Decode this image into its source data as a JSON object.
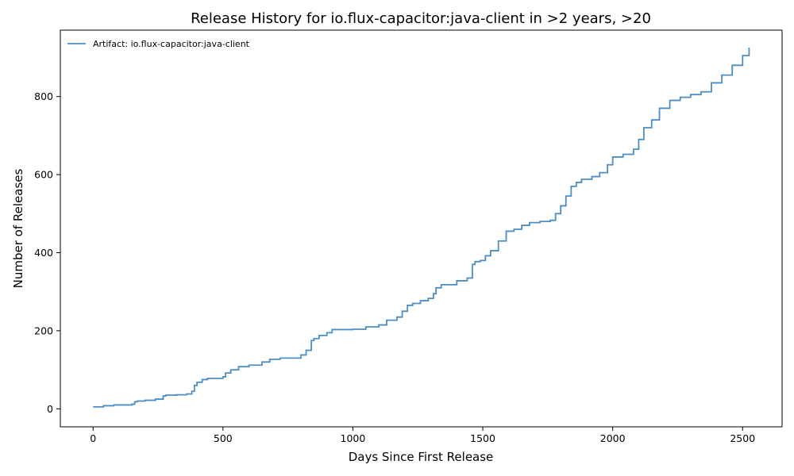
{
  "chart_data": {
    "type": "line",
    "title": "Release History for io.flux-capacitor:java-client in >2 years, >20",
    "xlabel": "Days Since First Release",
    "ylabel": "Number of Releases",
    "xlim": [
      -126,
      2652
    ],
    "ylim": [
      -46,
      970
    ],
    "xticks": [
      0,
      500,
      1000,
      1500,
      2000,
      2500
    ],
    "yticks": [
      0,
      200,
      400,
      600,
      800
    ],
    "xtick_labels": [
      "0",
      "500",
      "1000",
      "1500",
      "2000",
      "2500"
    ],
    "ytick_labels": [
      "0",
      "200",
      "400",
      "600",
      "800"
    ],
    "grid": false,
    "legend_position": "top-left",
    "series": [
      {
        "name": "Artifact: io.flux-capacitor:java-client",
        "color": "#4c8ec4",
        "x": [
          0,
          40,
          80,
          150,
          160,
          170,
          200,
          240,
          270,
          280,
          320,
          360,
          380,
          390,
          400,
          420,
          440,
          500,
          510,
          530,
          560,
          600,
          650,
          680,
          720,
          780,
          800,
          820,
          840,
          850,
          870,
          900,
          920,
          1000,
          1050,
          1100,
          1130,
          1170,
          1190,
          1210,
          1230,
          1260,
          1290,
          1310,
          1320,
          1340,
          1400,
          1440,
          1460,
          1470,
          1490,
          1510,
          1530,
          1560,
          1590,
          1620,
          1650,
          1680,
          1720,
          1760,
          1780,
          1800,
          1820,
          1840,
          1860,
          1880,
          1920,
          1950,
          1980,
          2000,
          2040,
          2080,
          2100,
          2120,
          2150,
          2180,
          2220,
          2260,
          2300,
          2340,
          2380,
          2420,
          2460,
          2500,
          2525
        ],
        "y": [
          5,
          8,
          10,
          12,
          18,
          20,
          22,
          25,
          33,
          35,
          36,
          38,
          45,
          60,
          68,
          75,
          78,
          82,
          92,
          100,
          108,
          112,
          120,
          127,
          130,
          130,
          138,
          150,
          175,
          180,
          188,
          195,
          203,
          204,
          210,
          215,
          227,
          235,
          250,
          265,
          270,
          277,
          283,
          295,
          310,
          318,
          328,
          335,
          370,
          377,
          380,
          392,
          405,
          430,
          455,
          460,
          470,
          477,
          480,
          483,
          500,
          520,
          545,
          570,
          580,
          588,
          595,
          605,
          625,
          645,
          652,
          665,
          690,
          720,
          740,
          770,
          790,
          798,
          805,
          812,
          835,
          855,
          880,
          905,
          925
        ]
      }
    ]
  }
}
